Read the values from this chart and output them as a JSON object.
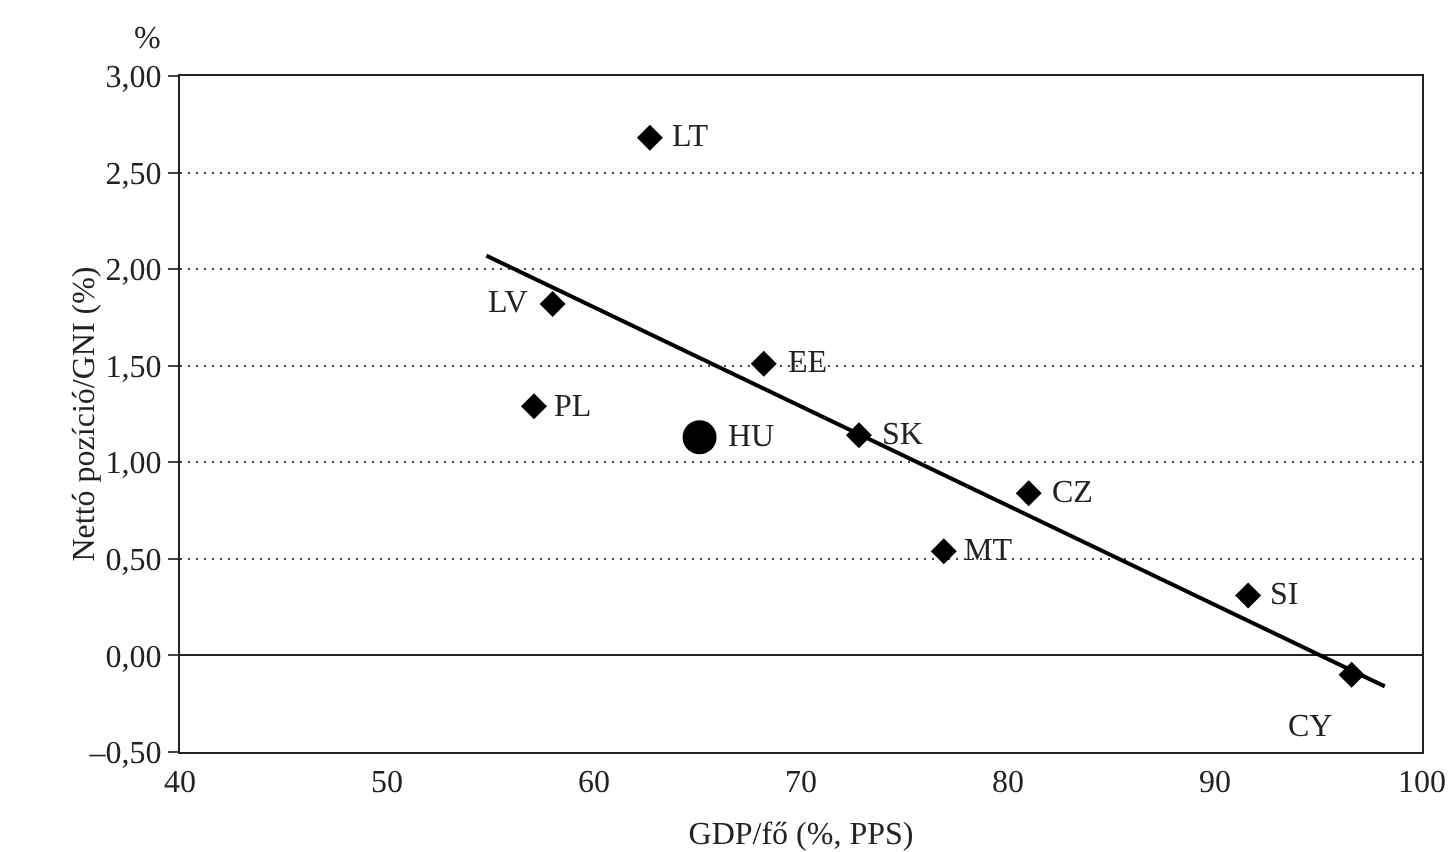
{
  "chart_data": {
    "type": "scatter",
    "xlabel": "GDP/fő (%, PPS)",
    "ylabel": "Nettó pozíció/GNI (%)",
    "xlim": [
      40,
      100
    ],
    "xticks": [
      40,
      50,
      60,
      70,
      80,
      90,
      100
    ],
    "ylim": [
      -0.5,
      3
    ],
    "yticks": [
      {
        "value": -0.5,
        "label": "–0,50"
      },
      {
        "value": 0,
        "label": "0,00"
      },
      {
        "value": 0.5,
        "label": "0,50"
      },
      {
        "value": 1,
        "label": "1,00"
      },
      {
        "value": 1.5,
        "label": "1,50"
      },
      {
        "value": 2,
        "label": "2,00"
      },
      {
        "value": 2.5,
        "label": "2,50"
      },
      {
        "value": 3,
        "label": "3,00"
      }
    ],
    "grid": "y",
    "series": [
      {
        "marker": "diamond",
        "color": "#000000",
        "x": [
          62.7,
          58.0,
          68.2,
          57.1,
          72.8,
          81.0,
          76.9,
          91.6,
          96.6
        ],
        "values": [
          2.68,
          1.82,
          1.51,
          1.29,
          1.14,
          0.84,
          0.54,
          0.31,
          -0.1
        ]
      },
      {
        "marker": "circle",
        "color": "#000000",
        "x": [
          65.1
        ],
        "values": [
          1.13
        ]
      },
      {
        "type": "line",
        "color": "#000000",
        "x": [
          54.8,
          98.2
        ],
        "values": [
          2.07,
          -0.16
        ]
      }
    ],
    "annotations": [
      {
        "text": "LT",
        "x": 62.7,
        "y": 2.68
      },
      {
        "text": "LV",
        "x": 58.0,
        "y": 1.82
      },
      {
        "text": "EE",
        "x": 68.2,
        "y": 1.51
      },
      {
        "text": "PL",
        "x": 57.1,
        "y": 1.29
      },
      {
        "text": "SK",
        "x": 72.8,
        "y": 1.14
      },
      {
        "text": "CZ",
        "x": 81.0,
        "y": 0.84
      },
      {
        "text": "MT",
        "x": 76.9,
        "y": 0.54
      },
      {
        "text": "SI",
        "x": 91.6,
        "y": 0.31
      },
      {
        "text": "CY",
        "x": 96.6,
        "y": -0.1
      },
      {
        "text": "HU",
        "x": 65.1,
        "y": 1.13
      },
      "%"
    ]
  }
}
